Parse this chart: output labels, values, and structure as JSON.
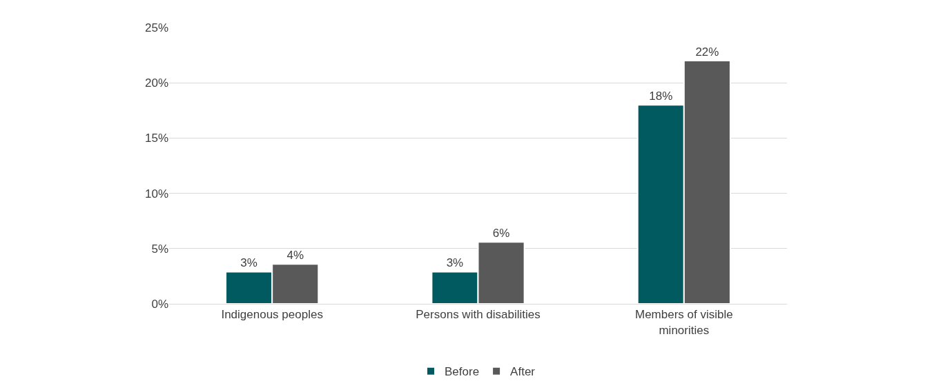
{
  "chart_data": {
    "type": "bar",
    "categories": [
      "Indigenous peoples",
      "Persons with disabilities",
      "Members of visible minorities"
    ],
    "series": [
      {
        "name": "Before",
        "color": "#005a5f",
        "values": [
          2.9,
          2.9,
          18.0
        ],
        "value_labels": [
          "3%",
          "3%",
          "18%"
        ]
      },
      {
        "name": "After",
        "color": "#595959",
        "values": [
          3.6,
          5.6,
          22.0
        ],
        "value_labels": [
          "4%",
          "6%",
          "22%"
        ]
      }
    ],
    "ylim": [
      0,
      25
    ],
    "yticks": [
      {
        "value": 0,
        "label": "0%"
      },
      {
        "value": 5,
        "label": "5%"
      },
      {
        "value": 10,
        "label": "10%"
      },
      {
        "value": 15,
        "label": "15%"
      },
      {
        "value": 20,
        "label": "20%"
      },
      {
        "value": 25,
        "label": "25%"
      }
    ],
    "grid": "y",
    "legend": "bottom"
  }
}
